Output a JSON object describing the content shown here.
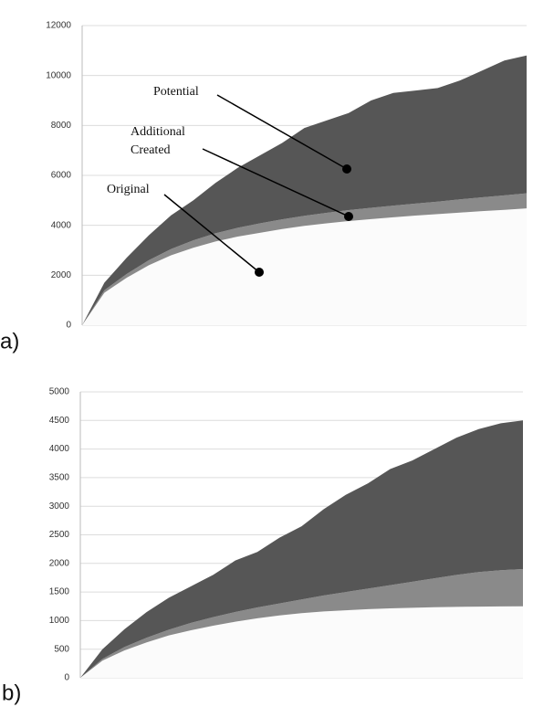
{
  "chart_data": [
    {
      "type": "stacked-area",
      "label": "a)",
      "categories": [
        null,
        null,
        null,
        null,
        null,
        null,
        null,
        null,
        null,
        null,
        null,
        null,
        null,
        null,
        null,
        null,
        null,
        null,
        null,
        null,
        null
      ],
      "ylim": [
        0,
        12000
      ],
      "yticks": [
        0,
        2000,
        4000,
        6000,
        8000,
        10000,
        12000
      ],
      "grid": true,
      "series": [
        {
          "name": "Original",
          "color": "#fbfbfb",
          "values": [
            0,
            1300,
            1900,
            2400,
            2800,
            3100,
            3350,
            3550,
            3700,
            3850,
            3980,
            4080,
            4170,
            4250,
            4320,
            4390,
            4450,
            4510,
            4570,
            4620,
            4680
          ]
        },
        {
          "name": "Additional Created",
          "color": "#8a8a8a",
          "values": [
            0,
            100,
            150,
            200,
            250,
            300,
            330,
            350,
            380,
            390,
            400,
            420,
            440,
            450,
            470,
            480,
            500,
            530,
            550,
            580,
            600
          ]
        },
        {
          "name": "Potential",
          "color": "#565656",
          "values": [
            0,
            300,
            650,
            1000,
            1350,
            1600,
            2020,
            2400,
            2720,
            3060,
            3520,
            3700,
            3890,
            4300,
            4510,
            4530,
            4550,
            4760,
            5080,
            5400,
            5520
          ]
        }
      ],
      "annotations": [
        [
          "Potential"
        ],
        [
          "Additional",
          "Created"
        ],
        [
          "Original"
        ]
      ]
    },
    {
      "type": "stacked-area",
      "label": "b)",
      "categories": [
        null,
        null,
        null,
        null,
        null,
        null,
        null,
        null,
        null,
        null,
        null,
        null,
        null,
        null,
        null,
        null,
        null,
        null,
        null,
        null,
        null
      ],
      "ylim": [
        0,
        5000
      ],
      "yticks": [
        0,
        500,
        1000,
        1500,
        2000,
        2500,
        3000,
        3500,
        4000,
        4500,
        5000
      ],
      "grid": true,
      "series": [
        {
          "color": "#fbfbfb",
          "values": [
            0,
            300,
            480,
            620,
            740,
            830,
            910,
            980,
            1040,
            1090,
            1130,
            1160,
            1180,
            1200,
            1215,
            1225,
            1235,
            1240,
            1245,
            1248,
            1250
          ]
        },
        {
          "color": "#8a8a8a",
          "values": [
            0,
            30,
            60,
            80,
            100,
            130,
            150,
            170,
            190,
            210,
            240,
            280,
            320,
            360,
            405,
            455,
            505,
            560,
            605,
            632,
            650
          ]
        },
        {
          "color": "#565656",
          "values": [
            0,
            170,
            310,
            450,
            560,
            640,
            740,
            900,
            970,
            1150,
            1280,
            1510,
            1700,
            1840,
            2030,
            2120,
            2260,
            2400,
            2500,
            2570,
            2600
          ]
        }
      ]
    }
  ]
}
